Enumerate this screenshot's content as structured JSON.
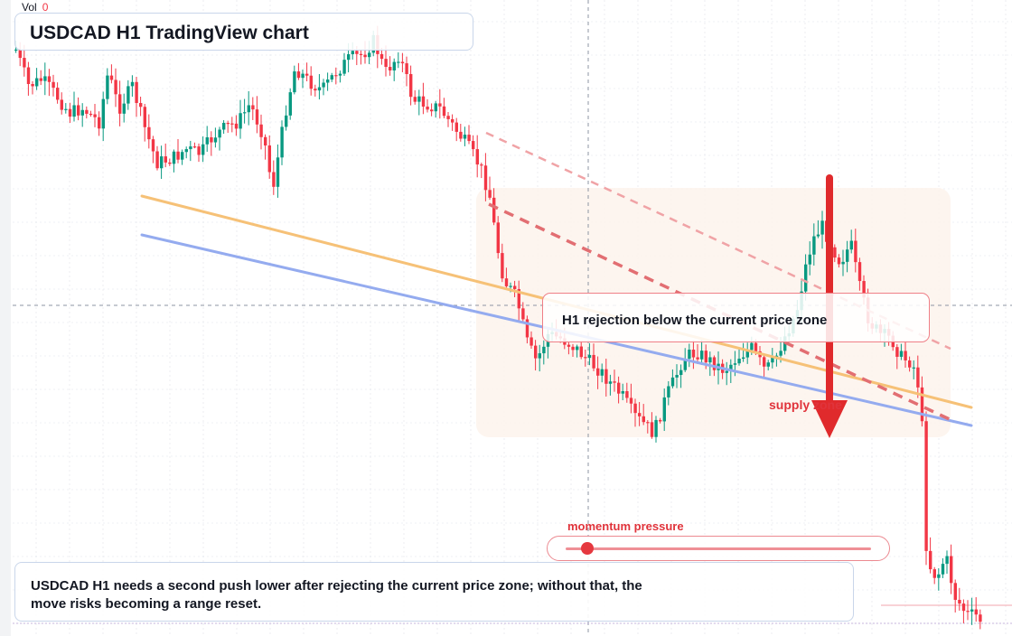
{
  "volume": {
    "label": "Vol",
    "value": "0"
  },
  "header": {
    "title": "USDCAD H1 TradingView chart"
  },
  "callout": {
    "text": "H1 rejection below the current price zone"
  },
  "zone_label": "supply zone",
  "momentum": {
    "label": "momentum pressure",
    "level": 0.07
  },
  "note": {
    "text": "USDCAD H1 needs a second push lower after rejecting the current price zone; without that, the move risks becoming a range reset."
  },
  "colors": {
    "bull": "#089981",
    "bear": "#f23645",
    "accent_red": "#e5383f",
    "ma_orange": "#f6c177",
    "ma_blue": "#94abef",
    "zone_fill": "#fdf3ec",
    "grid": "#dfe3ea"
  },
  "icons": {
    "arrow": "down-arrow-icon",
    "thumb": "slider-thumb-icon"
  }
}
